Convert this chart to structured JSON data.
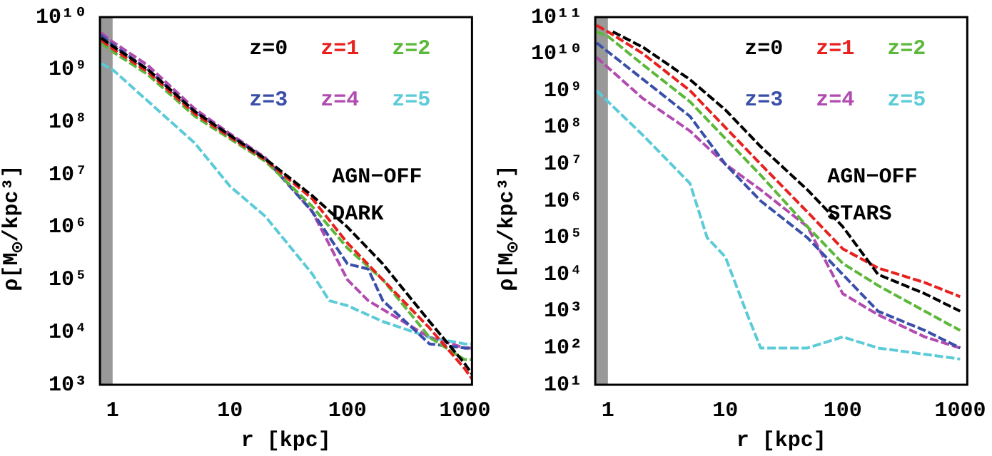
{
  "chart_data": [
    {
      "type": "line",
      "xlabel": "r [kpc]",
      "ylabel": "ρ[M$_{⊙}$/kpc³]",
      "log": "xy",
      "line_style": "dashed",
      "legend": "top right",
      "grid": false,
      "xlim": [
        0.78,
        1150
      ],
      "xticks": [
        1,
        10,
        100,
        1000
      ],
      "ylim": [
        1000,
        10000000000
      ],
      "yticks": [
        {
          "value": 1000,
          "label": "10³"
        },
        {
          "value": 10000,
          "label": "10⁴"
        },
        {
          "value": 100000,
          "label": "10⁵"
        },
        {
          "value": 1000000,
          "label": "10⁶"
        },
        {
          "value": 10000000,
          "label": "10⁷"
        },
        {
          "value": 100000000,
          "label": "10⁸"
        },
        {
          "value": 1000000000,
          "label": "10⁹"
        },
        {
          "value": 10000000000,
          "label": "10¹⁰"
        }
      ],
      "bands": [
        {
          "axis": "x",
          "from": 0.78,
          "to": 1,
          "color": "#999999"
        }
      ],
      "annotations": [
        "AGN−OFF",
        "DARK"
      ],
      "series": [
        {
          "name": "z=0",
          "color": "#000000",
          "x": [
            0.8,
            1,
            2,
            5,
            10,
            20,
            50,
            100,
            200,
            500,
            1000,
            1150
          ],
          "values": [
            4000000000,
            2800000000,
            1000000000,
            160000000,
            56000000,
            20000000,
            4000000,
            1000000,
            200000,
            16000,
            2500,
            1600
          ]
        },
        {
          "name": "z=1",
          "color": "#e8211f",
          "x": [
            0.8,
            1,
            2,
            5,
            10,
            20,
            50,
            100,
            200,
            500,
            1000,
            1150
          ],
          "values": [
            3600000000,
            2500000000,
            900000000,
            145000000,
            52000000,
            19000000,
            3500000,
            500000,
            100000,
            12000,
            2000,
            1300
          ]
        },
        {
          "name": "z=2",
          "color": "#5cb83a",
          "x": [
            0.8,
            1,
            2,
            5,
            10,
            20,
            50,
            100,
            200,
            500,
            1000,
            1150
          ],
          "values": [
            3200000000,
            2200000000,
            800000000,
            130000000,
            48000000,
            18000000,
            2500000,
            400000,
            100000,
            8000,
            3000,
            3000
          ]
        },
        {
          "name": "z=3",
          "color": "#3a4fa8",
          "x": [
            0.8,
            1,
            2,
            5,
            10,
            20,
            50,
            100,
            150,
            200,
            500,
            1000,
            1150
          ],
          "values": [
            4500000000,
            3000000000,
            1000000000,
            160000000,
            56000000,
            20000000,
            2000000,
            200000,
            160000,
            40000,
            6000,
            5000,
            5000
          ]
        },
        {
          "name": "z=4",
          "color": "#b24bb0",
          "x": [
            0.8,
            1,
            2,
            5,
            10,
            20,
            50,
            100,
            150,
            500,
            1000,
            1150
          ],
          "values": [
            5000000000,
            3400000000,
            1200000000,
            180000000,
            60000000,
            21000000,
            2000000,
            100000,
            40000,
            8000,
            5000,
            5000
          ]
        },
        {
          "name": "z=5",
          "color": "#5ccbd8",
          "x": [
            0.8,
            1,
            2,
            5,
            10,
            20,
            50,
            70,
            100,
            200,
            500,
            1000,
            1150
          ],
          "values": [
            1300000000,
            1000000000,
            250000000,
            40000000,
            6000000,
            1600000,
            130000,
            40000,
            32000,
            16000,
            8000,
            6000,
            6000
          ]
        }
      ]
    },
    {
      "type": "line",
      "xlabel": "r [kpc]",
      "ylabel": "ρ[M$_{⊙}$/kpc³]",
      "log": "xy",
      "line_style": "dashed",
      "legend": "top right",
      "grid": false,
      "xlim": [
        0.78,
        1150
      ],
      "xticks": [
        1,
        10,
        100,
        1000
      ],
      "ylim": [
        10,
        100000000000
      ],
      "yticks": [
        {
          "value": 10,
          "label": "10¹"
        },
        {
          "value": 100,
          "label": "10²"
        },
        {
          "value": 1000,
          "label": "10³"
        },
        {
          "value": 10000,
          "label": "10⁴"
        },
        {
          "value": 100000,
          "label": "10⁵"
        },
        {
          "value": 1000000,
          "label": "10⁶"
        },
        {
          "value": 10000000,
          "label": "10⁷"
        },
        {
          "value": 100000000,
          "label": "10⁸"
        },
        {
          "value": 1000000000,
          "label": "10⁹"
        },
        {
          "value": 10000000000,
          "label": "10¹⁰"
        },
        {
          "value": 100000000000,
          "label": "10¹¹"
        }
      ],
      "bands": [
        {
          "axis": "x",
          "from": 0.78,
          "to": 1,
          "color": "#999999"
        }
      ],
      "annotations": [
        "AGN−OFF",
        "STARS"
      ],
      "series": [
        {
          "name": "z=0",
          "color": "#000000",
          "x": [
            1.1,
            2,
            5,
            10,
            20,
            50,
            100,
            200,
            500,
            1000
          ],
          "values": [
            40000000000,
            15000000000,
            2000000000,
            300000000,
            30000000,
            2000000,
            200000,
            10000,
            3000,
            1000
          ]
        },
        {
          "name": "z=1",
          "color": "#e8211f",
          "x": [
            0.8,
            1,
            2,
            5,
            10,
            20,
            50,
            100,
            200,
            500,
            1000
          ],
          "values": [
            60000000000,
            40000000000,
            10000000000,
            1000000000,
            100000000,
            10000000,
            500000,
            50000,
            15000,
            6000,
            2500
          ]
        },
        {
          "name": "z=2",
          "color": "#5cb83a",
          "x": [
            0.8,
            1,
            2,
            5,
            10,
            20,
            50,
            100,
            200,
            500,
            1000
          ],
          "values": [
            40000000000,
            30000000000,
            5000000000,
            500000000,
            50000000,
            5000000,
            200000,
            20000,
            5000,
            1000,
            300
          ]
        },
        {
          "name": "z=3",
          "color": "#3a4fa8",
          "x": [
            0.8,
            2,
            5,
            10,
            20,
            50,
            100,
            200,
            500,
            1000
          ],
          "values": [
            20000000000,
            2000000000,
            200000000,
            10000000,
            1000000,
            100000,
            10000,
            1000,
            300,
            100
          ]
        },
        {
          "name": "z=4",
          "color": "#b24bb0",
          "x": [
            0.8,
            2,
            5,
            10,
            20,
            50,
            100,
            200,
            500,
            1000
          ],
          "values": [
            8000000000,
            600000000,
            80000000,
            10000000,
            2000000,
            200000,
            3000,
            800,
            200,
            100
          ]
        },
        {
          "name": "z=5",
          "color": "#5ccbd8",
          "x": [
            0.8,
            2,
            5,
            7,
            10,
            15,
            20,
            50,
            100,
            200,
            1000
          ],
          "values": [
            1000000000,
            60000000,
            3000000,
            100000,
            30000,
            1000,
            100,
            100,
            200,
            100,
            50
          ]
        }
      ]
    }
  ]
}
